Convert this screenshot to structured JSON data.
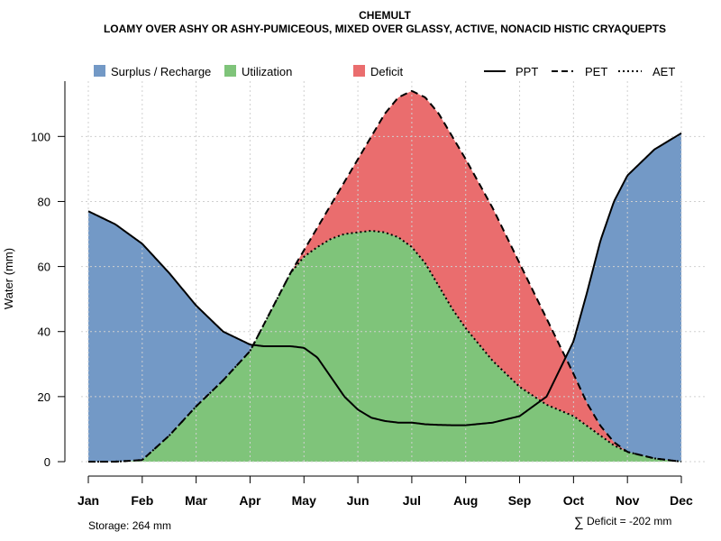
{
  "chart_data": {
    "type": "area",
    "title": "CHEMULT",
    "subtitle": "LOAMY OVER ASHY OR ASHY-PUMICEOUS, MIXED OVER GLASSY, ACTIVE, NONACID HISTIC CRYAQUEPTS",
    "ylabel": "Water (mm)",
    "xlabel": "",
    "ylim": [
      0,
      117
    ],
    "yticks": [
      0,
      20,
      40,
      60,
      80,
      100
    ],
    "months": [
      "Jan",
      "Feb",
      "Mar",
      "Apr",
      "May",
      "Jun",
      "Jul",
      "Aug",
      "Sep",
      "Oct",
      "Nov",
      "Dec"
    ],
    "x": [
      1,
      1.5,
      2,
      2.5,
      3,
      3.5,
      4,
      4.25,
      4.5,
      4.75,
      5,
      5.25,
      5.5,
      5.75,
      6,
      6.25,
      6.5,
      6.75,
      7,
      7.25,
      7.5,
      7.75,
      8,
      8.5,
      9,
      9.5,
      10,
      10.25,
      10.5,
      10.75,
      11,
      11.5,
      12
    ],
    "series": [
      {
        "name": "PPT",
        "style": "solid",
        "values": [
          77,
          73,
          67,
          58,
          48,
          40,
          36,
          35.5,
          35.5,
          35.5,
          35,
          32,
          26,
          20,
          16,
          13.5,
          12.5,
          12,
          12,
          11.5,
          11.3,
          11.2,
          11.2,
          12,
          14,
          20,
          37,
          52,
          68,
          80,
          88,
          96,
          101
        ]
      },
      {
        "name": "PET",
        "style": "dashed",
        "values": [
          0,
          0,
          0.5,
          8,
          17,
          25,
          34,
          42,
          50,
          58,
          65,
          72,
          79,
          86,
          93,
          100,
          107,
          112,
          114,
          112,
          107,
          100,
          93,
          78,
          61,
          44,
          27,
          18,
          11,
          6,
          3,
          1,
          0
        ]
      },
      {
        "name": "AET",
        "style": "dotted",
        "values": [
          0,
          0,
          0.5,
          8,
          17,
          25,
          34,
          42,
          50,
          58,
          63,
          66,
          68.5,
          70,
          70.5,
          71,
          70.5,
          69,
          66,
          61,
          54,
          47,
          41,
          31,
          23,
          17.5,
          14,
          11,
          8,
          5,
          3,
          1,
          0
        ]
      }
    ],
    "legend": {
      "fills": [
        "Surplus / Recharge",
        "Utilization",
        "Deficit"
      ],
      "lines": [
        "PPT",
        "PET",
        "AET"
      ]
    },
    "colors": {
      "surplus": "#7399c6",
      "utilization": "#7fc47a",
      "deficit": "#ea6d6e",
      "line": "#000000",
      "grid": "#d0d0d0"
    },
    "storage_label": "Storage: 264 mm",
    "deficit_label": "Deficit = -202 mm",
    "deficit_symbol": "∑"
  }
}
